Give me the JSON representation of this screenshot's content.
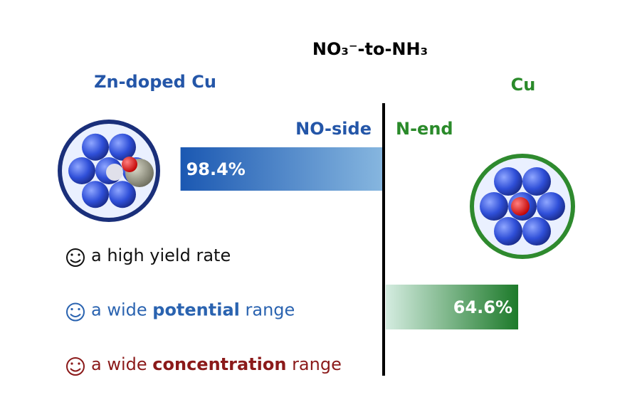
{
  "title": "NO₃⁻-to-NH₃",
  "left": {
    "label": "Zn-doped Cu",
    "side_label": "NO-side",
    "color": "#2456a8"
  },
  "right": {
    "label": "Cu",
    "side_label": "N-end",
    "color": "#2a8a2a"
  },
  "bars": [
    {
      "value": 98.4,
      "value_label": "98.4%"
    },
    {
      "value": 64.6,
      "value_label": "64.6%"
    }
  ],
  "advantages": [
    {
      "color": "#111111",
      "parts": [
        {
          "text": "a high yield rate",
          "bold": false
        }
      ]
    },
    {
      "color": "#2a63b0",
      "parts": [
        {
          "text": "a wide ",
          "bold": false
        },
        {
          "text": "potential",
          "bold": true
        },
        {
          "text": " range",
          "bold": false
        }
      ]
    },
    {
      "color": "#8b1a1a",
      "parts": [
        {
          "text": "a wide ",
          "bold": false
        },
        {
          "text": "concentration",
          "bold": true
        },
        {
          "text": " range",
          "bold": false
        }
      ]
    }
  ]
}
